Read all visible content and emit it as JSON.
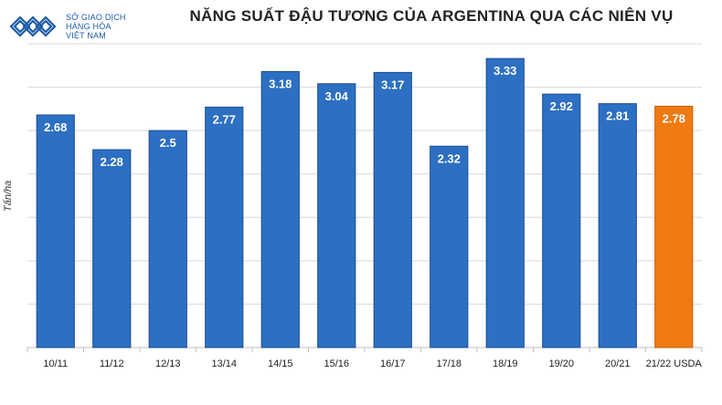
{
  "logo": {
    "lines": [
      "SỞ GIAO DỊCH",
      "HÀNG HÓA",
      "VIỆT NAM"
    ]
  },
  "chart_data": {
    "type": "bar",
    "title": "NĂNG SUẤT ĐẬU TƯƠNG CỦA ARGENTINA QUA CÁC NIÊN VỤ",
    "ylabel": "Tấn/ha",
    "xlabel": "",
    "categories": [
      "10/11",
      "11/12",
      "12/13",
      "13/14",
      "14/15",
      "15/16",
      "16/17",
      "17/18",
      "18/19",
      "19/20",
      "20/21",
      "21/22 USDA"
    ],
    "values": [
      2.68,
      2.28,
      2.5,
      2.77,
      3.18,
      3.04,
      3.17,
      2.32,
      3.33,
      2.92,
      2.81,
      2.78
    ],
    "data_labels": [
      "2.68",
      "2.28",
      "2.5",
      "2.77",
      "3.18",
      "3.04",
      "3.17",
      "2.32",
      "3.33",
      "2.92",
      "2.81",
      "2.78"
    ],
    "ylim": [
      0,
      3.5
    ],
    "grid": true,
    "legend": "none",
    "colors": {
      "bar": "#2d6fc2",
      "bar_border": "#1b4f92",
      "highlight": "#f07a12",
      "highlight_border": "#c55f05",
      "label": "#ffffff",
      "grid": "#d9d9d9"
    },
    "highlight_index": 11
  }
}
